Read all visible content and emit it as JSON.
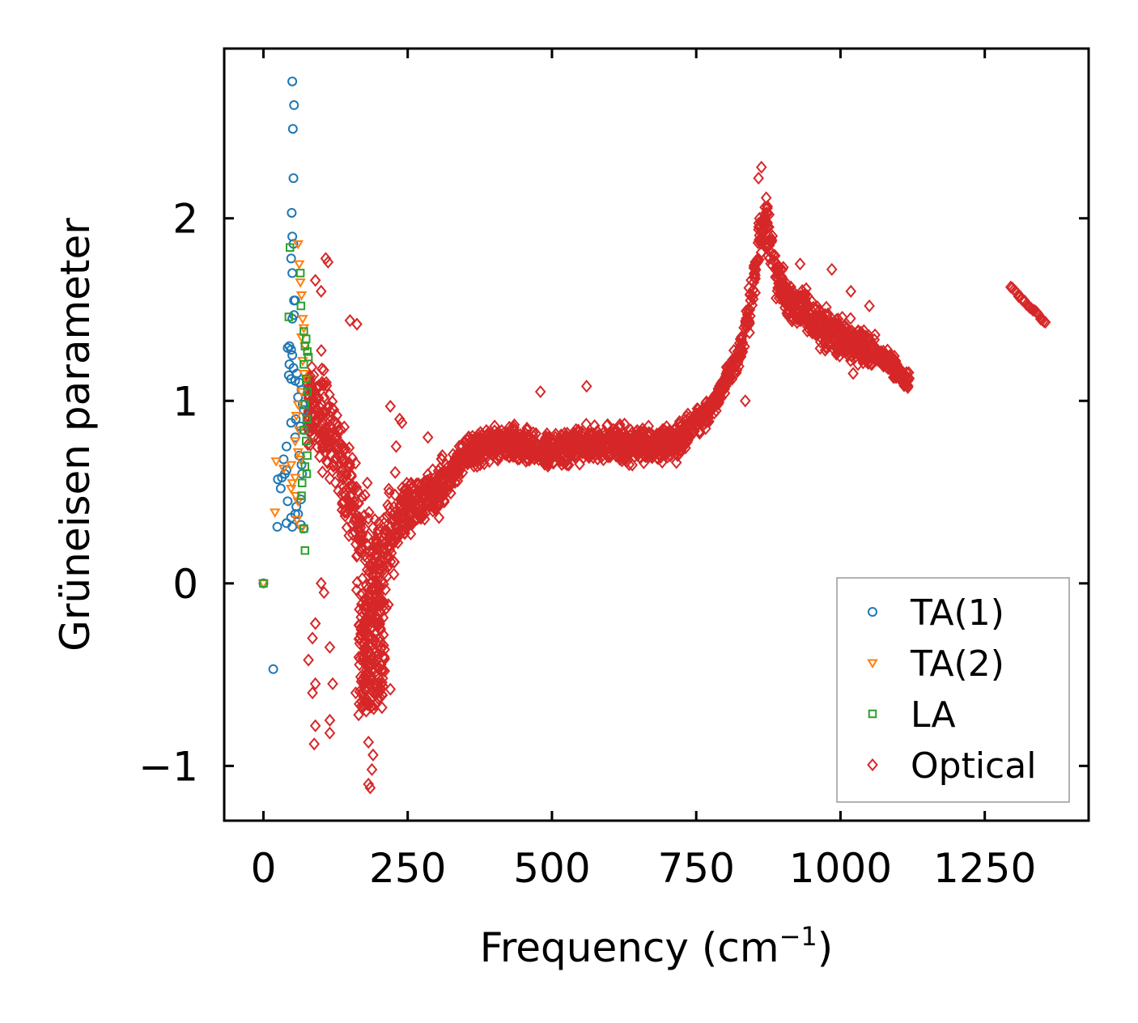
{
  "chart_data": {
    "type": "scatter",
    "title": "",
    "xlabel": "Frequency (cm",
    "xlabel_sup": "−1",
    "xlabel_close": ")",
    "ylabel": "Grüneisen parameter",
    "xlim": [
      -68,
      1430
    ],
    "ylim": [
      -1.3,
      2.93
    ],
    "xticks": [
      0,
      250,
      500,
      750,
      1000,
      1250
    ],
    "xtick_labels": [
      "0",
      "250",
      "500",
      "750",
      "1000",
      "1250"
    ],
    "yticks": [
      -1,
      0,
      1,
      2
    ],
    "ytick_labels": [
      "−1",
      "0",
      "1",
      "2"
    ],
    "legend_position": "bottom-right",
    "series": [
      {
        "name": "TA(1)",
        "marker": "circle",
        "color": "#1f77b4",
        "points": [
          [
            0,
            0
          ],
          [
            17,
            -0.47
          ],
          [
            50,
            2.75
          ],
          [
            53,
            2.62
          ],
          [
            51,
            2.49
          ],
          [
            52,
            2.22
          ],
          [
            49,
            2.03
          ],
          [
            50,
            1.9
          ],
          [
            52,
            1.86
          ],
          [
            48,
            1.78
          ],
          [
            50,
            1.7
          ],
          [
            53,
            1.55
          ],
          [
            55,
            1.55
          ],
          [
            50,
            1.45
          ],
          [
            53,
            1.47
          ],
          [
            45,
            1.3
          ],
          [
            48,
            1.28
          ],
          [
            42,
            1.29
          ],
          [
            50,
            1.25
          ],
          [
            45,
            1.2
          ],
          [
            52,
            1.18
          ],
          [
            58,
            1.15
          ],
          [
            44,
            1.14
          ],
          [
            48,
            1.12
          ],
          [
            55,
            1.11
          ],
          [
            62,
            1.1
          ],
          [
            66,
            1.06
          ],
          [
            60,
            1.02
          ],
          [
            68,
            0.98
          ],
          [
            70,
            0.95
          ],
          [
            56,
            0.9
          ],
          [
            48,
            0.88
          ],
          [
            64,
            0.86
          ],
          [
            70,
            0.84
          ],
          [
            55,
            0.8
          ],
          [
            40,
            0.75
          ],
          [
            62,
            0.7
          ],
          [
            35,
            0.68
          ],
          [
            66,
            0.65
          ],
          [
            40,
            0.62
          ],
          [
            67,
            0.6
          ],
          [
            25,
            0.57
          ],
          [
            32,
            0.58
          ],
          [
            37,
            0.6
          ],
          [
            30,
            0.52
          ],
          [
            42,
            0.45
          ],
          [
            65,
            0.46
          ],
          [
            57,
            0.42
          ],
          [
            60,
            0.38
          ],
          [
            55,
            0.38
          ],
          [
            48,
            0.36
          ],
          [
            40,
            0.33
          ],
          [
            24,
            0.31
          ],
          [
            65,
            0.32
          ],
          [
            50,
            0.31
          ],
          [
            70,
            0.3
          ]
        ]
      },
      {
        "name": "TA(2)",
        "marker": "triangle-down",
        "color": "#ff7f0e",
        "points": [
          [
            0,
            0
          ],
          [
            60,
            1.86
          ],
          [
            62,
            1.75
          ],
          [
            64,
            1.65
          ],
          [
            66,
            1.58
          ],
          [
            68,
            1.45
          ],
          [
            70,
            1.4
          ],
          [
            66,
            1.35
          ],
          [
            72,
            1.3
          ],
          [
            68,
            1.22
          ],
          [
            70,
            1.15
          ],
          [
            74,
            1.12
          ],
          [
            66,
            1.05
          ],
          [
            60,
            0.98
          ],
          [
            57,
            0.92
          ],
          [
            62,
            0.84
          ],
          [
            55,
            0.78
          ],
          [
            60,
            0.72
          ],
          [
            64,
            0.68
          ],
          [
            48,
            0.65
          ],
          [
            22,
            0.67
          ],
          [
            35,
            0.63
          ],
          [
            55,
            0.58
          ],
          [
            50,
            0.55
          ],
          [
            48,
            0.52
          ],
          [
            56,
            0.48
          ],
          [
            60,
            0.45
          ],
          [
            20,
            0.39
          ],
          [
            58,
            0.35
          ],
          [
            66,
            0.3
          ]
        ]
      },
      {
        "name": "LA",
        "marker": "square",
        "color": "#2ca02c",
        "points": [
          [
            0,
            0
          ],
          [
            46,
            1.84
          ],
          [
            64,
            1.7
          ],
          [
            65,
            1.52
          ],
          [
            44,
            1.46
          ],
          [
            70,
            1.38
          ],
          [
            74,
            1.34
          ],
          [
            72,
            1.3
          ],
          [
            76,
            1.27
          ],
          [
            78,
            1.24
          ],
          [
            70,
            1.2
          ],
          [
            74,
            1.12
          ],
          [
            76,
            1.05
          ],
          [
            72,
            0.98
          ],
          [
            75,
            0.9
          ],
          [
            70,
            0.84
          ],
          [
            74,
            0.78
          ],
          [
            76,
            0.7
          ],
          [
            72,
            0.64
          ],
          [
            75,
            0.6
          ],
          [
            67,
            0.55
          ],
          [
            66,
            0.48
          ],
          [
            70,
            0.3
          ],
          [
            72,
            0.18
          ]
        ]
      },
      {
        "name": "Optical",
        "marker": "diamond",
        "color": "#d62728",
        "profile": [
          [
            75,
            0.95
          ],
          [
            85,
            1.0
          ],
          [
            95,
            0.95
          ],
          [
            110,
            0.85
          ],
          [
            130,
            0.7
          ],
          [
            150,
            0.45
          ],
          [
            165,
            0.25
          ],
          [
            180,
            0.1
          ],
          [
            195,
            0.05
          ],
          [
            215,
            0.2
          ],
          [
            240,
            0.38
          ],
          [
            270,
            0.45
          ],
          [
            300,
            0.5
          ],
          [
            330,
            0.62
          ],
          [
            360,
            0.72
          ],
          [
            400,
            0.77
          ],
          [
            450,
            0.75
          ],
          [
            500,
            0.72
          ],
          [
            550,
            0.76
          ],
          [
            600,
            0.76
          ],
          [
            650,
            0.76
          ],
          [
            700,
            0.76
          ],
          [
            720,
            0.78
          ],
          [
            750,
            0.88
          ],
          [
            780,
            0.98
          ],
          [
            800,
            1.1
          ],
          [
            830,
            1.3
          ],
          [
            850,
            1.65
          ],
          [
            860,
            1.9
          ],
          [
            870,
            2.0
          ],
          [
            880,
            1.85
          ],
          [
            890,
            1.7
          ],
          [
            910,
            1.55
          ],
          [
            940,
            1.5
          ],
          [
            970,
            1.4
          ],
          [
            1000,
            1.35
          ],
          [
            1040,
            1.3
          ],
          [
            1080,
            1.22
          ],
          [
            1120,
            1.1
          ]
        ],
        "outliers": [
          [
            108,
            1.78
          ],
          [
            112,
            1.76
          ],
          [
            90,
            1.66
          ],
          [
            100,
            1.6
          ],
          [
            150,
            1.44
          ],
          [
            162,
            1.42
          ],
          [
            180,
            0.55
          ],
          [
            220,
            0.97
          ],
          [
            236,
            0.9
          ],
          [
            240,
            0.88
          ],
          [
            230,
            0.75
          ],
          [
            285,
            0.8
          ],
          [
            310,
            0.7
          ],
          [
            480,
            1.05
          ],
          [
            560,
            1.08
          ],
          [
            835,
            1.0
          ],
          [
            863,
            2.28
          ],
          [
            858,
            2.22
          ],
          [
            930,
            1.75
          ],
          [
            985,
            1.72
          ],
          [
            1018,
            1.6
          ],
          [
            1050,
            1.52
          ],
          [
            1022,
            1.15
          ],
          [
            100,
            0.0
          ],
          [
            105,
            -0.05
          ],
          [
            90,
            -0.22
          ],
          [
            85,
            -0.3
          ],
          [
            78,
            -0.42
          ],
          [
            115,
            -0.35
          ],
          [
            120,
            -0.55
          ],
          [
            90,
            -0.55
          ],
          [
            85,
            -0.6
          ],
          [
            90,
            -0.78
          ],
          [
            115,
            -0.75
          ],
          [
            88,
            -0.88
          ],
          [
            115,
            -0.82
          ],
          [
            160,
            -0.6
          ],
          [
            175,
            -0.55
          ],
          [
            182,
            -0.87
          ],
          [
            190,
            -0.94
          ],
          [
            188,
            -1.02
          ],
          [
            182,
            -1.1
          ],
          [
            185,
            -1.12
          ],
          [
            210,
            -0.48
          ],
          [
            220,
            -0.58
          ],
          [
            165,
            -0.72
          ],
          [
            178,
            -0.7
          ]
        ],
        "trail": [
          [
            1295,
            1.62
          ],
          [
            1355,
            1.43
          ]
        ]
      }
    ]
  }
}
